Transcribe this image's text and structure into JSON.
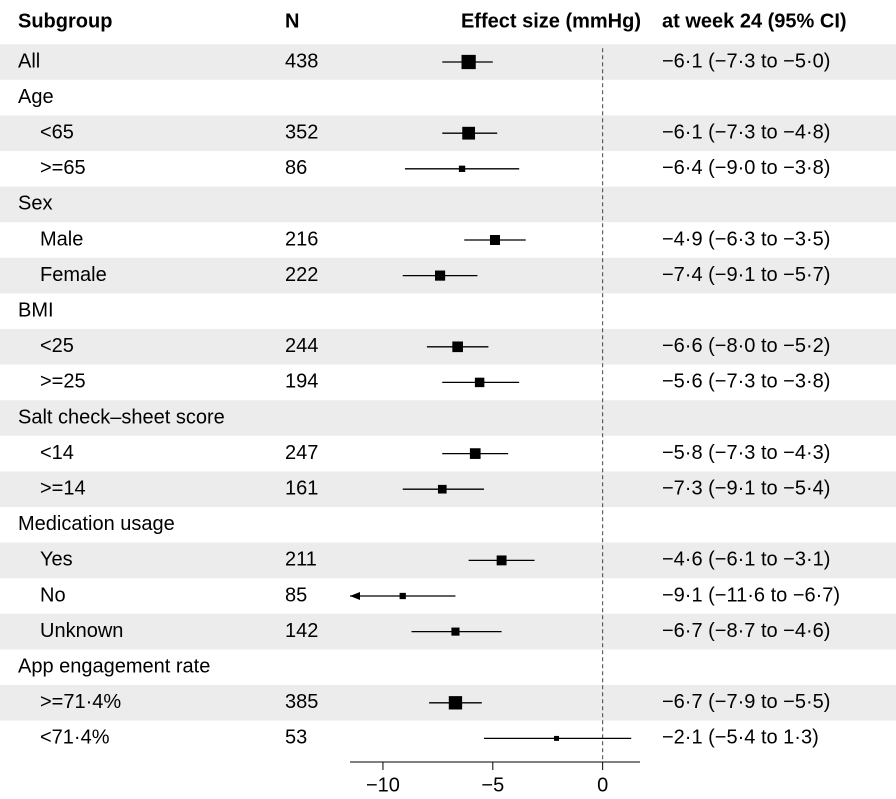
{
  "chart_data": {
    "type": "forest",
    "columns": [
      "Subgroup",
      "N",
      "Effect size (mmHg)",
      "at week 24 (95% CI)"
    ],
    "categories": [
      "All",
      "Age",
      "<65",
      ">=65",
      "Sex",
      "Male",
      "Female",
      "BMI",
      "<25",
      ">=25",
      "Salt check–sheet score",
      "<14",
      ">=14",
      "Medication usage",
      "Yes",
      "No",
      "Unknown",
      "App engagement rate",
      ">=71·4%",
      "<71·4%"
    ],
    "n": [
      438,
      null,
      352,
      86,
      null,
      216,
      222,
      null,
      244,
      194,
      null,
      247,
      161,
      null,
      211,
      85,
      142,
      null,
      385,
      53
    ],
    "values": [
      -6.1,
      null,
      -6.1,
      -6.4,
      null,
      -4.9,
      -7.4,
      null,
      -6.6,
      -5.6,
      null,
      -5.8,
      -7.3,
      null,
      -4.6,
      -9.1,
      -6.7,
      null,
      -6.7,
      -2.1
    ],
    "lower": [
      -7.3,
      null,
      -7.3,
      -9.0,
      null,
      -6.3,
      -9.1,
      null,
      -8.0,
      -7.3,
      null,
      -7.3,
      -9.1,
      null,
      -6.1,
      -11.6,
      -8.7,
      null,
      -7.9,
      -5.4
    ],
    "upper": [
      -5.0,
      null,
      -4.8,
      -3.8,
      null,
      -3.5,
      -5.7,
      null,
      -5.2,
      -3.8,
      null,
      -4.3,
      -5.4,
      null,
      -3.1,
      -6.7,
      -4.6,
      null,
      -5.5,
      1.3
    ],
    "value_labels": [
      "−6·1 (−7·3 to −5·0)",
      null,
      "−6·1 (−7·3 to −4·8)",
      "−6·4 (−9·0 to −3·8)",
      null,
      "−4·9 (−6·3 to −3·5)",
      "−7·4 (−9·1 to −5·7)",
      null,
      "−6·6 (−8·0 to −5·2)",
      "−5·6 (−7·3 to −3·8)",
      null,
      "−5·8 (−7·3 to −4·3)",
      "−7·3 (−9·1 to −5·4)",
      null,
      "−4·6 (−6·1 to −3·1)",
      "−9·1 (−11·6 to −6·7)",
      "−6·7 (−8·7 to −4·6)",
      null,
      "−6·7 (−7·9 to −5·5)",
      "−2·1 (−5·4 to 1·3)"
    ],
    "color": "#000000",
    "xlim": [
      -11.5,
      1.7
    ],
    "xticks": [
      {
        "value": -10,
        "label": "−10"
      },
      {
        "value": -5,
        "label": "−5"
      },
      0
    ]
  }
}
